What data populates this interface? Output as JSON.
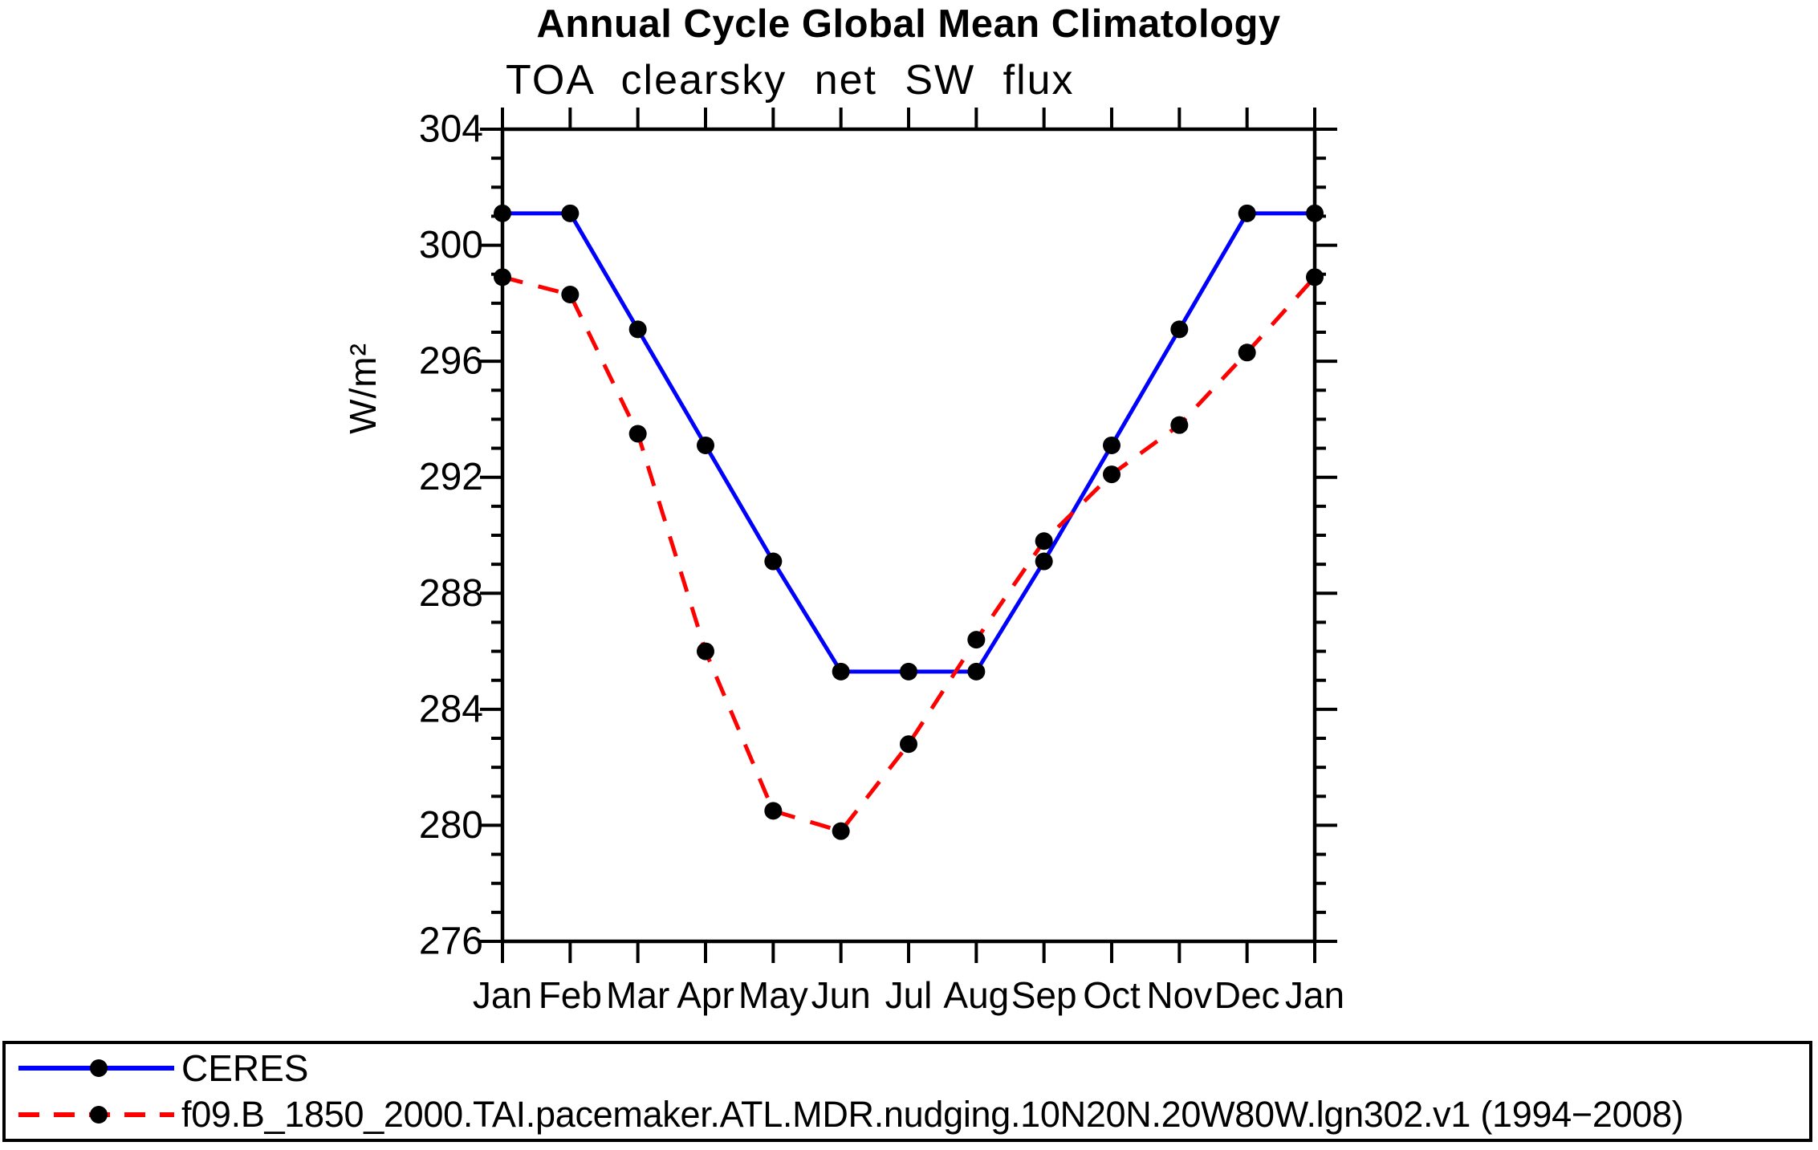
{
  "chart_data": {
    "type": "line",
    "title": "Annual Cycle Global Mean Climatology",
    "subtitle": "TOA clearsky net SW flux",
    "ylabel": "W/m²",
    "xlabel": "",
    "categories": [
      "Jan",
      "Feb",
      "Mar",
      "Apr",
      "May",
      "Jun",
      "Jul",
      "Aug",
      "Sep",
      "Oct",
      "Nov",
      "Dec",
      "Jan"
    ],
    "ylim": [
      276,
      304
    ],
    "y_major_step": 4,
    "y_minor_step": 1,
    "grid": false,
    "legend_position": "bottom",
    "background": "#ffffff",
    "axis_color": "#000000",
    "series": [
      {
        "name": "CERES",
        "color": "#0000ff",
        "style": "solid",
        "marker": "circle",
        "marker_color": "#000000",
        "values": [
          301.1,
          301.1,
          297.1,
          293.1,
          289.1,
          285.3,
          285.3,
          285.3,
          289.1,
          293.1,
          297.1,
          301.1,
          301.1
        ]
      },
      {
        "name": "f09.B_1850_2000.TAI.pacemaker.ATL.MDR.nudging.10N20N.20W80W.lgn302.v1 (1994−2008)",
        "color": "#ff0000",
        "style": "dashed",
        "marker": "circle",
        "marker_color": "#000000",
        "values": [
          298.9,
          298.3,
          293.5,
          286.0,
          280.5,
          279.8,
          282.8,
          286.4,
          289.8,
          292.1,
          293.8,
          296.3,
          298.9
        ]
      }
    ]
  }
}
